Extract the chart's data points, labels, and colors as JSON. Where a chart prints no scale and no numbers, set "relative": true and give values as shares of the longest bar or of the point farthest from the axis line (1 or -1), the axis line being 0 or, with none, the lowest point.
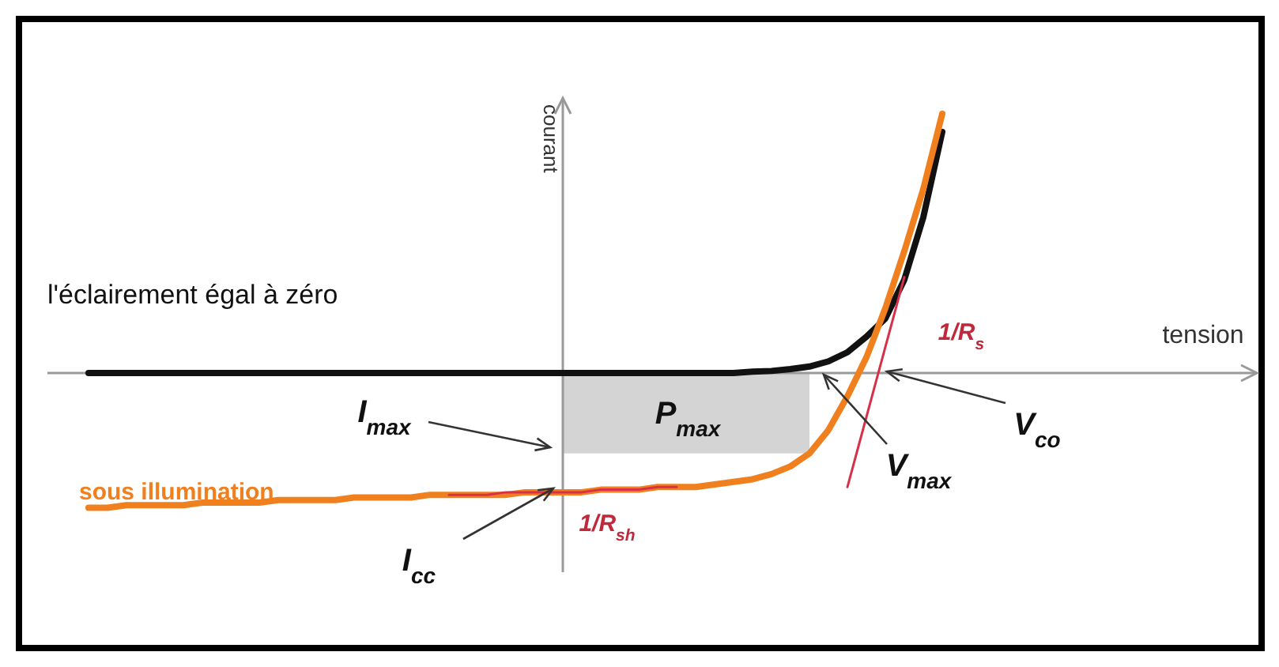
{
  "chart_data": {
    "type": "line",
    "relative": true,
    "ylabel": "courant",
    "categories": [
      null,
      null,
      null,
      null,
      null,
      null,
      null,
      null,
      null,
      null,
      null,
      null,
      null,
      null,
      null,
      null,
      null,
      null,
      null,
      null,
      null,
      null,
      null,
      null,
      null,
      null,
      null,
      null,
      null,
      null,
      null,
      null,
      null,
      null,
      null,
      null,
      null,
      null,
      null,
      null,
      null,
      null,
      null,
      null,
      null,
      null,
      null,
      null
    ],
    "series": [
      {
        "name": "l'éclairement égal à zéro",
        "color": "#111111",
        "values": [
          null,
          0,
          0,
          0,
          0,
          0,
          0,
          0,
          0,
          0,
          0,
          0,
          0,
          0,
          0,
          0,
          0,
          0,
          0,
          0,
          0,
          0,
          0,
          0,
          0,
          0,
          0,
          0,
          0,
          0,
          0,
          0,
          0,
          0,
          0,
          0,
          0.005,
          0.008,
          0.015,
          0.025,
          0.045,
          0.08,
          0.14,
          0.21,
          0.36,
          0.6,
          0.93,
          null
        ]
      },
      {
        "name": "sous illumination",
        "color": "#f07f1e",
        "values": [
          null,
          -0.52,
          -0.52,
          -0.51,
          -0.51,
          -0.51,
          -0.51,
          -0.5,
          -0.5,
          -0.5,
          -0.5,
          -0.49,
          -0.49,
          -0.49,
          -0.49,
          -0.48,
          -0.48,
          -0.48,
          -0.48,
          -0.47,
          -0.47,
          -0.47,
          -0.47,
          -0.47,
          -0.46,
          -0.46,
          -0.46,
          -0.46,
          -0.45,
          -0.45,
          -0.45,
          -0.44,
          -0.44,
          -0.44,
          -0.43,
          -0.42,
          -0.41,
          -0.39,
          -0.36,
          -0.31,
          -0.22,
          -0.09,
          0.06,
          0.25,
          0.47,
          0.71,
          1.0,
          null
        ]
      },
      {
        "type": "area",
        "color": "#d4d4d4",
        "values": [
          null,
          null,
          null,
          null,
          null,
          null,
          null,
          null,
          null,
          null,
          null,
          null,
          null,
          null,
          null,
          null,
          null,
          null,
          null,
          null,
          null,
          null,
          null,
          null,
          null,
          null,
          -0.31,
          -0.31,
          -0.31,
          -0.31,
          -0.31,
          -0.31,
          -0.31,
          -0.31,
          -0.31,
          -0.31,
          -0.31,
          -0.31,
          -0.31,
          -0.31,
          null,
          null,
          null,
          null,
          null,
          null,
          null,
          null
        ]
      },
      {
        "color": "#d9304a",
        "values": [
          null,
          null,
          null,
          null,
          null,
          null,
          null,
          null,
          null,
          null,
          null,
          null,
          null,
          null,
          null,
          null,
          null,
          null,
          null,
          null,
          null,
          null,
          null,
          null,
          null,
          null,
          null,
          null,
          null,
          null,
          null,
          null,
          null,
          null,
          null,
          null,
          null,
          null,
          null,
          null,
          null,
          -0.44,
          -0.17,
          0.1,
          0.37,
          null,
          null,
          null
        ]
      },
      {
        "color": "#d9304a",
        "values": [
          null,
          null,
          null,
          null,
          null,
          null,
          null,
          null,
          null,
          null,
          null,
          null,
          null,
          null,
          null,
          null,
          null,
          null,
          null,
          null,
          -0.47,
          -0.47,
          -0.47,
          -0.46,
          -0.46,
          -0.46,
          -0.46,
          -0.46,
          -0.45,
          -0.45,
          -0.45,
          -0.44,
          -0.44,
          null,
          null,
          null,
          null,
          null,
          null,
          null,
          null,
          null,
          null,
          null,
          null,
          null,
          null,
          null
        ]
      }
    ],
    "annotations": [
      "I$_{max}$",
      "I$_{cc}$",
      "P$_{max}$",
      "V$_{max}$",
      "V$_{co}$",
      "1/R$_{s}$",
      "1/R$_{sh}$",
      "tension"
    ]
  }
}
